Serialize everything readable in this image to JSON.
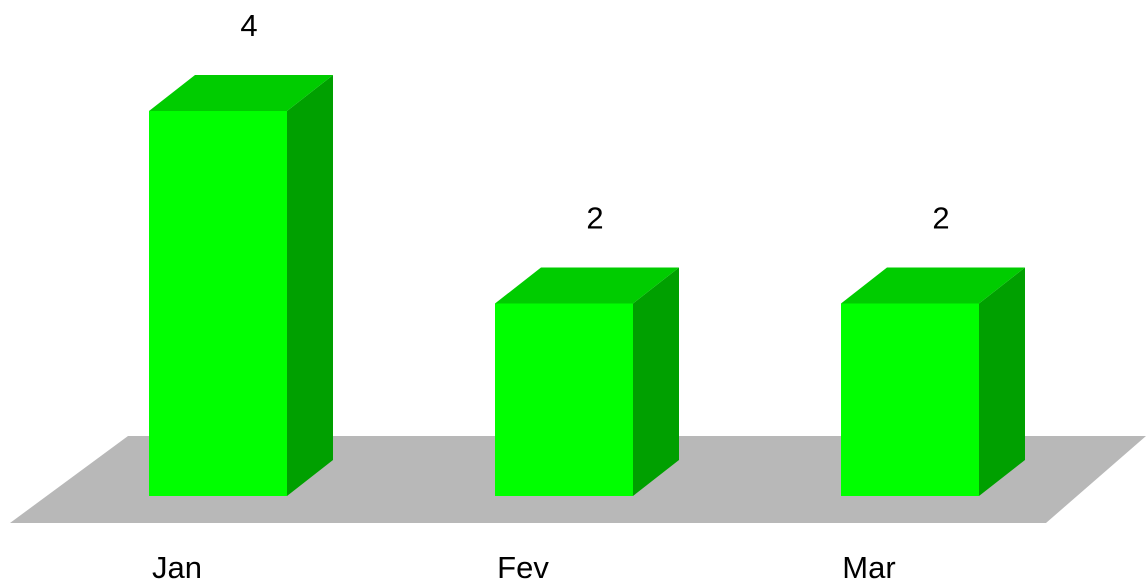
{
  "chart_data": {
    "type": "bar",
    "categories": [
      "Jan",
      "Fev",
      "Mar"
    ],
    "values": [
      4,
      2,
      2
    ],
    "title": "",
    "xlabel": "",
    "ylabel": "",
    "ylim": [
      0,
      4
    ],
    "grid": false,
    "legend": "none",
    "style": "3d"
  },
  "colors": {
    "bar_front": "#00ff00",
    "bar_top": "#00cc00",
    "bar_side": "#00a000",
    "floor": "#b8b8b8"
  }
}
